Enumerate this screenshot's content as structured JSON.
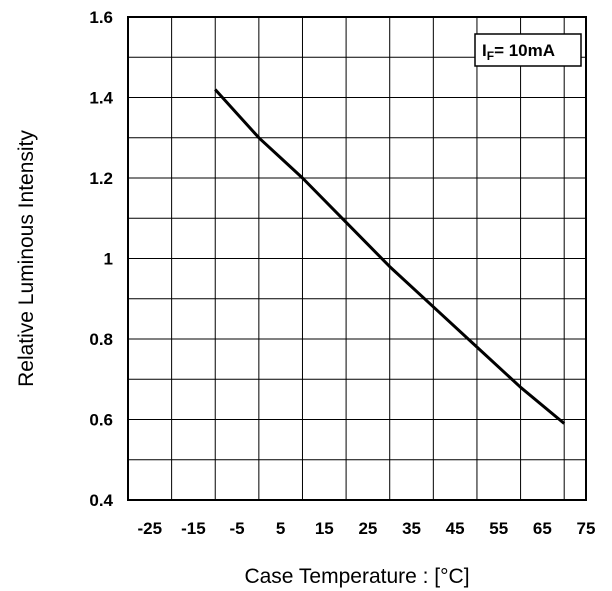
{
  "chart_data": {
    "type": "line",
    "xlabel": "Case Temperature : [°C]",
    "ylabel": "Relative Luminous Intensity",
    "xlim": [
      -30,
      75
    ],
    "ylim": [
      0.4,
      1.6
    ],
    "x_ticks": [
      -25,
      -15,
      -5,
      5,
      15,
      25,
      35,
      45,
      55,
      65,
      75
    ],
    "x_tick_labels": [
      "-25",
      "-15",
      "-5",
      "5",
      "15",
      "25",
      "35",
      "45",
      "55",
      "65",
      "75"
    ],
    "y_ticks": [
      0.4,
      0.6,
      0.8,
      1.0,
      1.2,
      1.4,
      1.6
    ],
    "y_tick_labels": [
      "0.4",
      "0.6",
      "0.8",
      "1",
      "1.2",
      "1.4",
      "1.6"
    ],
    "x_grid": [
      -30,
      -20,
      -10,
      0,
      10,
      20,
      30,
      40,
      50,
      60,
      70
    ],
    "y_grid": [
      0.4,
      0.5,
      0.6,
      0.7,
      0.8,
      0.9,
      1.0,
      1.1,
      1.2,
      1.3,
      1.4,
      1.5,
      1.6
    ],
    "grid": true,
    "legend": {
      "placement": "top-right",
      "main": "I",
      "sub": "F",
      "rest": "= 10mA"
    },
    "series": [
      {
        "x": [
          -10,
          -5,
          0,
          5,
          10,
          20,
          30,
          40,
          50,
          60,
          70
        ],
        "y": [
          1.42,
          1.36,
          1.3,
          1.25,
          1.2,
          1.09,
          0.98,
          0.88,
          0.78,
          0.68,
          0.59
        ],
        "color": "#000000"
      }
    ]
  }
}
